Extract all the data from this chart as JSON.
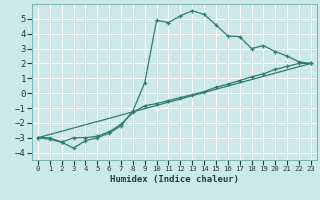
{
  "xlabel": "Humidex (Indice chaleur)",
  "bg_color": "#cde8e8",
  "grid_color": "#ffffff",
  "line_color": "#2e7d6e",
  "xlim": [
    -0.5,
    23.5
  ],
  "ylim": [
    -4.5,
    6.0
  ],
  "xticks": [
    0,
    1,
    2,
    3,
    4,
    5,
    6,
    7,
    8,
    9,
    10,
    11,
    12,
    13,
    14,
    15,
    16,
    17,
    18,
    19,
    20,
    21,
    22,
    23
  ],
  "yticks": [
    -4,
    -3,
    -2,
    -1,
    0,
    1,
    2,
    3,
    4,
    5
  ],
  "line1_x": [
    0,
    1,
    2,
    3,
    4,
    5,
    6,
    7,
    8,
    9,
    10,
    11,
    12,
    13,
    14,
    15,
    16,
    17,
    18,
    19,
    20,
    21,
    22,
    23
  ],
  "line1_y": [
    -3,
    -3.1,
    -3.3,
    -3.7,
    -3.2,
    -3.0,
    -2.7,
    -2.2,
    -1.2,
    0.7,
    4.9,
    4.75,
    5.2,
    5.55,
    5.3,
    4.6,
    3.85,
    3.8,
    3.0,
    3.2,
    2.8,
    2.5,
    2.1,
    2.0
  ],
  "line2_x": [
    0,
    1,
    2,
    3,
    4,
    5,
    6,
    7,
    8,
    9,
    10,
    11,
    12,
    13,
    14,
    15,
    16,
    17,
    18,
    19,
    20,
    21,
    22,
    23
  ],
  "line2_y": [
    -3,
    -3.0,
    -3.3,
    -3.0,
    -3.0,
    -2.9,
    -2.6,
    -2.1,
    -1.3,
    -0.85,
    -0.7,
    -0.5,
    -0.3,
    -0.1,
    0.1,
    0.4,
    0.6,
    0.85,
    1.1,
    1.3,
    1.6,
    1.8,
    2.0,
    2.0
  ],
  "line3_x": [
    0,
    23
  ],
  "line3_y": [
    -3,
    2.0
  ]
}
